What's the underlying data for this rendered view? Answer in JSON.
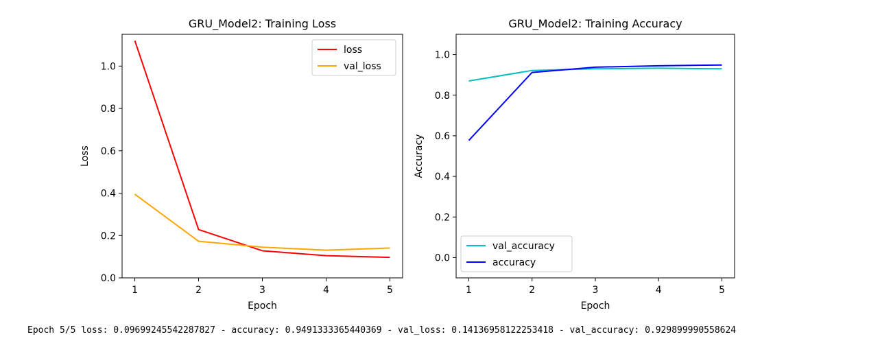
{
  "chart_data": [
    {
      "type": "line",
      "title": "GRU_Model2: Training Loss",
      "xlabel": "Epoch",
      "ylabel": "Loss",
      "x": [
        1,
        2,
        3,
        4,
        5
      ],
      "xlim": [
        0.8,
        5.2
      ],
      "ylim": [
        0.0,
        1.15
      ],
      "xticks": [
        1,
        2,
        3,
        4,
        5
      ],
      "yticks": [
        0.0,
        0.2,
        0.4,
        0.6,
        0.8,
        1.0
      ],
      "ytick_labels": [
        "0.0",
        "0.2",
        "0.4",
        "0.6",
        "0.8",
        "1.0"
      ],
      "grid": false,
      "legend": "upper-right",
      "series": [
        {
          "name": "loss",
          "color": "#ff0000",
          "values": [
            1.12,
            0.228,
            0.128,
            0.105,
            0.097
          ]
        },
        {
          "name": "val_loss",
          "color": "#ffa500",
          "values": [
            0.395,
            0.173,
            0.145,
            0.131,
            0.141
          ]
        }
      ]
    },
    {
      "type": "line",
      "title": "GRU_Model2: Training Accuracy",
      "xlabel": "Epoch",
      "ylabel": "Accuracy",
      "x": [
        1,
        2,
        3,
        4,
        5
      ],
      "xlim": [
        0.8,
        5.2
      ],
      "ylim": [
        -0.1,
        1.1
      ],
      "xticks": [
        1,
        2,
        3,
        4,
        5
      ],
      "yticks": [
        0.0,
        0.2,
        0.4,
        0.6,
        0.8,
        1.0
      ],
      "ytick_labels": [
        "0.0",
        "0.2",
        "0.4",
        "0.6",
        "0.8",
        "1.0"
      ],
      "grid": false,
      "legend": "lower-left",
      "series": [
        {
          "name": "val_accuracy",
          "color": "#00bfbf",
          "values": [
            0.87,
            0.922,
            0.93,
            0.933,
            0.93
          ]
        },
        {
          "name": "accuracy",
          "color": "#0000ff",
          "values": [
            0.577,
            0.912,
            0.938,
            0.945,
            0.949
          ]
        }
      ]
    }
  ],
  "status_text": "Epoch 5/5 loss: 0.09699245542287827 - accuracy: 0.9491333365440369 - val_loss: 0.14136958122253418 - val_accuracy: 0.929899990558624"
}
